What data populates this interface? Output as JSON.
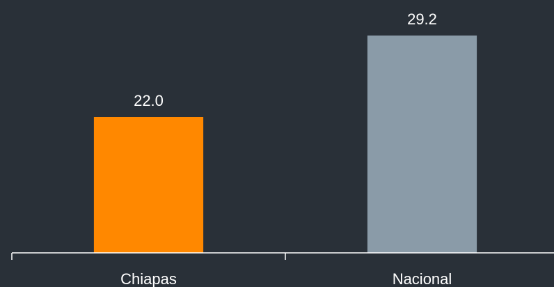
{
  "chart_data": {
    "type": "bar",
    "categories": [
      "Chiapas",
      "Nacional"
    ],
    "values": [
      22,
      29.2
    ],
    "value_labels": [
      "22.0",
      "29.2"
    ],
    "colors": [
      "#ff8800",
      "#8a9ba8"
    ],
    "ylim": [
      10,
      32
    ]
  }
}
